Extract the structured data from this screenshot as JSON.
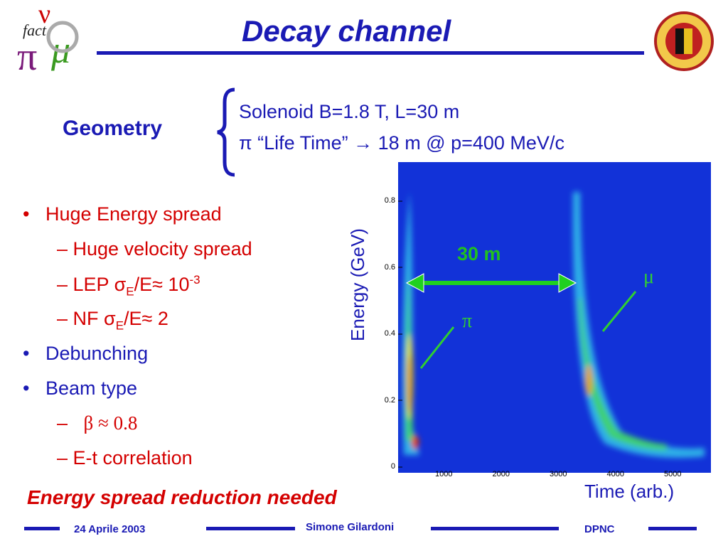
{
  "header": {
    "title": "Decay channel",
    "logo_text": "fact"
  },
  "geometry": {
    "label": "Geometry",
    "lines": [
      "Solenoid B=1.8 T, L=30 m",
      "π “Life Time” → 18 m @ p=400 MeV/c"
    ]
  },
  "bullets": [
    {
      "text": "Huge Energy spread"
    },
    {
      "text": "Huge velocity spread"
    },
    {
      "parts": [
        "LEP σ",
        "E",
        "/E≈ 10",
        "-3"
      ]
    },
    {
      "parts": [
        "NF  σ",
        "E",
        "/E≈ 2"
      ]
    },
    {
      "text": "Debunching"
    },
    {
      "text": "Beam type"
    },
    {
      "text": "β ≈ 0.8"
    },
    {
      "text": "E-t correlation"
    }
  ],
  "plot": {
    "y_label": "Energy (GeV)",
    "x_label": "Time (arb.)",
    "yticks": [
      "0",
      "0.2",
      "0.4",
      "0.6",
      "0.8"
    ],
    "xticks": [
      "1000",
      "2000",
      "3000",
      "4000",
      "5000"
    ],
    "distance": "30 m",
    "pi": "π",
    "mu": "μ"
  },
  "conclusion": "Energy spread reduction needed",
  "footer": {
    "date": "24 Aprile 2003",
    "author": "Simone Gilardoni",
    "org": "DPNC"
  }
}
